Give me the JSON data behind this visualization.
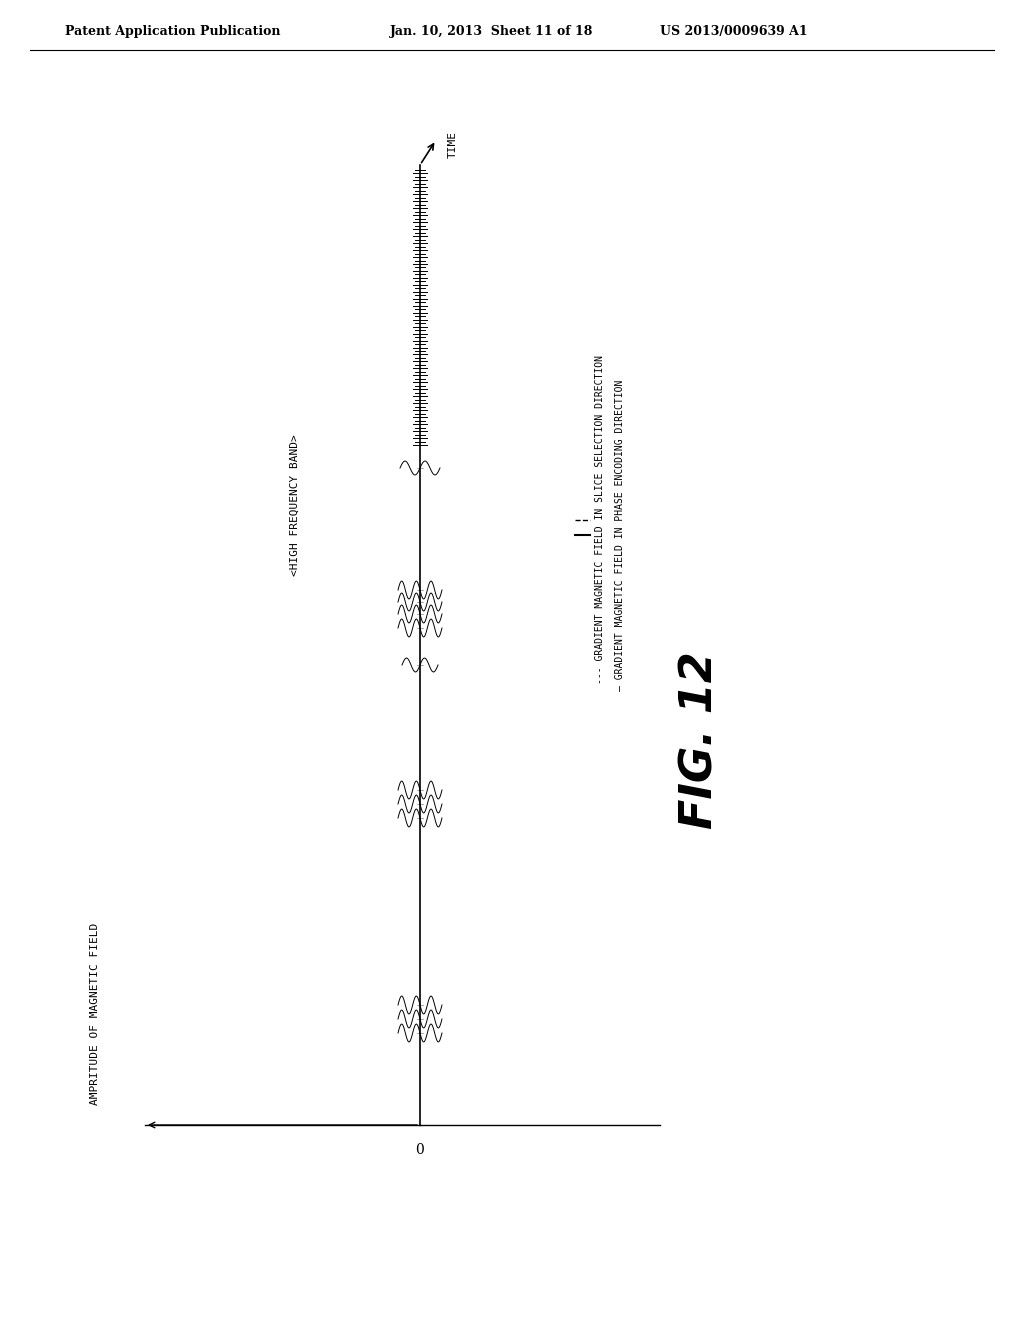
{
  "background_color": "#ffffff",
  "header_left": "Patent Application Publication",
  "header_center": "Jan. 10, 2013  Sheet 11 of 18",
  "header_right": "US 2013/0009639 A1",
  "header_fontsize": 9,
  "fig_label": "FIG. 12",
  "fig_label_fontsize": 32,
  "ylabel_text": "AMPRITUDE OF MAGNETIC FIELD",
  "xlabel_text": "TIME",
  "high_freq_label": "<HIGH FREQUENCY BAND>",
  "legend_line1": "--- GRADIENT MAGNETIC FIELD IN SLICE SELECTION DIRECTION",
  "legend_line2": "— GRADIENT MAGNETIC FIELD IN PHASE ENCODING DIRECTION",
  "axis_origin_label": "0",
  "plot_color": "#000000"
}
